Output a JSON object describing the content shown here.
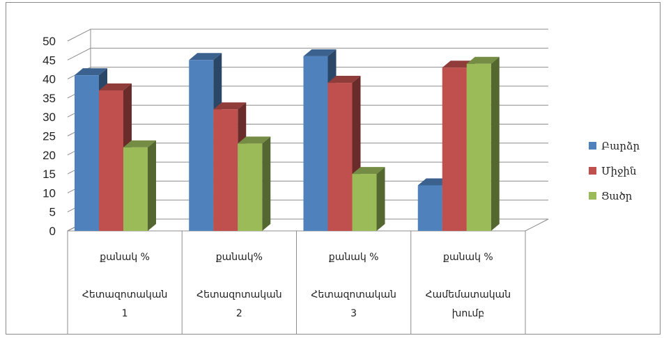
{
  "chart_data": {
    "type": "bar",
    "title": "",
    "xlabel": "",
    "ylabel": "",
    "ylim": [
      0,
      50
    ],
    "yticks": [
      0,
      5,
      10,
      15,
      20,
      25,
      30,
      35,
      40,
      45,
      50
    ],
    "grid": true,
    "legend_position": "right",
    "categories": [
      {
        "line1": "քանակ %",
        "line2": "Հետազոտական",
        "line3": "1"
      },
      {
        "line1": "քանակ%",
        "line2": "Հետազոտական",
        "line3": "2"
      },
      {
        "line1": "քանակ %",
        "line2": "Հետազոտական",
        "line3": "3"
      },
      {
        "line1": "քանակ   %",
        "line2": "Համեմատական",
        "line3": "խումբ"
      }
    ],
    "series": [
      {
        "name": "Բարձր",
        "color": "#4f81bd",
        "values": [
          41,
          45,
          46,
          12
        ]
      },
      {
        "name": "Միջին",
        "color": "#c0504d",
        "values": [
          37,
          32,
          39,
          43
        ]
      },
      {
        "name": "Ցածր",
        "color": "#9bbb59",
        "values": [
          22,
          23,
          15,
          44
        ]
      }
    ]
  }
}
